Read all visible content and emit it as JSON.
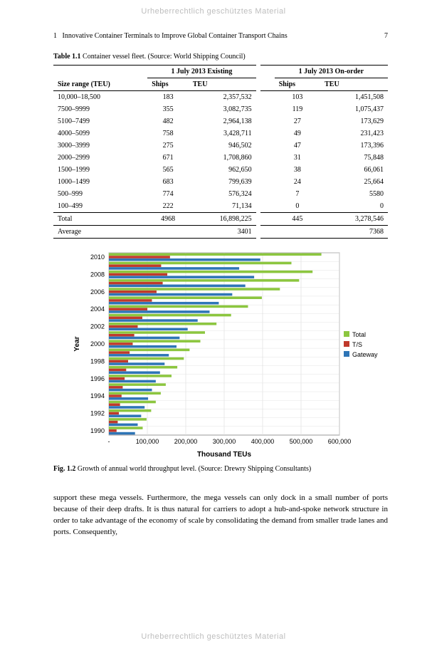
{
  "watermark": "Urheberrechtlich geschütztes Material",
  "header": {
    "chapter_num": "1",
    "chapter_title": "Innovative Container Terminals to Improve Global Container Transport Chains",
    "page_num": "7"
  },
  "table": {
    "caption_label": "Table 1.1",
    "caption_text": "  Container vessel fleet. (Source: World Shipping Council)",
    "group_headers": [
      "1 July 2013 Existing",
      "1 July 2013 On-order"
    ],
    "col_headers": [
      "Size range (TEU)",
      "Ships",
      "TEU",
      "Ships",
      "TEU"
    ],
    "rows": [
      [
        "10,000–18,500",
        "183",
        "2,357,532",
        "103",
        "1,451,508"
      ],
      [
        "7500–9999",
        "355",
        "3,082,735",
        "119",
        "1,075,437"
      ],
      [
        "5100–7499",
        "482",
        "2,964,138",
        "27",
        "173,629"
      ],
      [
        "4000–5099",
        "758",
        "3,428,711",
        "49",
        "231,423"
      ],
      [
        "3000–3999",
        "275",
        "946,502",
        "47",
        "173,396"
      ],
      [
        "2000–2999",
        "671",
        "1,708,860",
        "31",
        "75,848"
      ],
      [
        "1500–1999",
        "565",
        "962,650",
        "38",
        "66,061"
      ],
      [
        "1000–1499",
        "683",
        "799,639",
        "24",
        "25,664"
      ],
      [
        "500–999",
        "774",
        "576,324",
        "7",
        "5580"
      ],
      [
        "100–499",
        "222",
        "71,134",
        "0",
        "0"
      ]
    ],
    "total_row": [
      "Total",
      "4968",
      "16,898,225",
      "445",
      "3,278,546"
    ],
    "avg_row": [
      "Average",
      "",
      "3401",
      "",
      "7368"
    ]
  },
  "chart": {
    "type": "bar-horizontal-grouped",
    "y_label": "Year",
    "x_label": "Thousand TEUs",
    "x_min": 0,
    "x_max": 600000,
    "x_ticks": [
      "-",
      "100,000",
      "200,000",
      "300,000",
      "400,000",
      "500,000",
      "600,000"
    ],
    "years": [
      2010,
      2009,
      2008,
      2007,
      2006,
      2005,
      2004,
      2003,
      2002,
      2001,
      2000,
      1999,
      1998,
      1997,
      1996,
      1995,
      1994,
      1993,
      1992,
      1991,
      1990
    ],
    "year_labels_shown": [
      2010,
      2008,
      2006,
      2004,
      2002,
      2000,
      1998,
      1996,
      1994,
      1992,
      1990
    ],
    "series": [
      {
        "name": "Total",
        "color": "#8cc63f",
        "values": [
          553000,
          475000,
          530000,
          495000,
          445000,
          398000,
          362000,
          318000,
          280000,
          250000,
          238000,
          210000,
          195000,
          178000,
          163000,
          148000,
          135000,
          122000,
          110000,
          98000,
          88000
        ]
      },
      {
        "name": "T/S",
        "color": "#c0392b",
        "values": [
          159000,
          136000,
          152000,
          140000,
          124000,
          112000,
          100000,
          87000,
          75000,
          66000,
          62000,
          54000,
          50000,
          45000,
          41000,
          36000,
          33000,
          29000,
          26000,
          23000,
          20000
        ]
      },
      {
        "name": "Gateway",
        "color": "#2e75b6",
        "values": [
          394000,
          339000,
          378000,
          355000,
          321000,
          286000,
          262000,
          231000,
          205000,
          184000,
          176000,
          156000,
          145000,
          133000,
          122000,
          112000,
          102000,
          93000,
          84000,
          75000,
          68000
        ]
      }
    ],
    "grid_color": "#dcdcdc",
    "axis_color": "#808080",
    "tick_font_size": 9
  },
  "figure": {
    "caption_label": "Fig. 1.2",
    "caption_text": "  Growth of annual world throughput level. (Source: Drewry Shipping Consultants)"
  },
  "body": "support these mega vessels. Furthermore, the mega vessels can only dock in a small number of ports because of their deep drafts. It is thus natural for carriers to adopt a hub-and-spoke network structure in order to take advantage of the economy of scale by consolidating the demand from smaller trade lanes and ports. Consequently,"
}
